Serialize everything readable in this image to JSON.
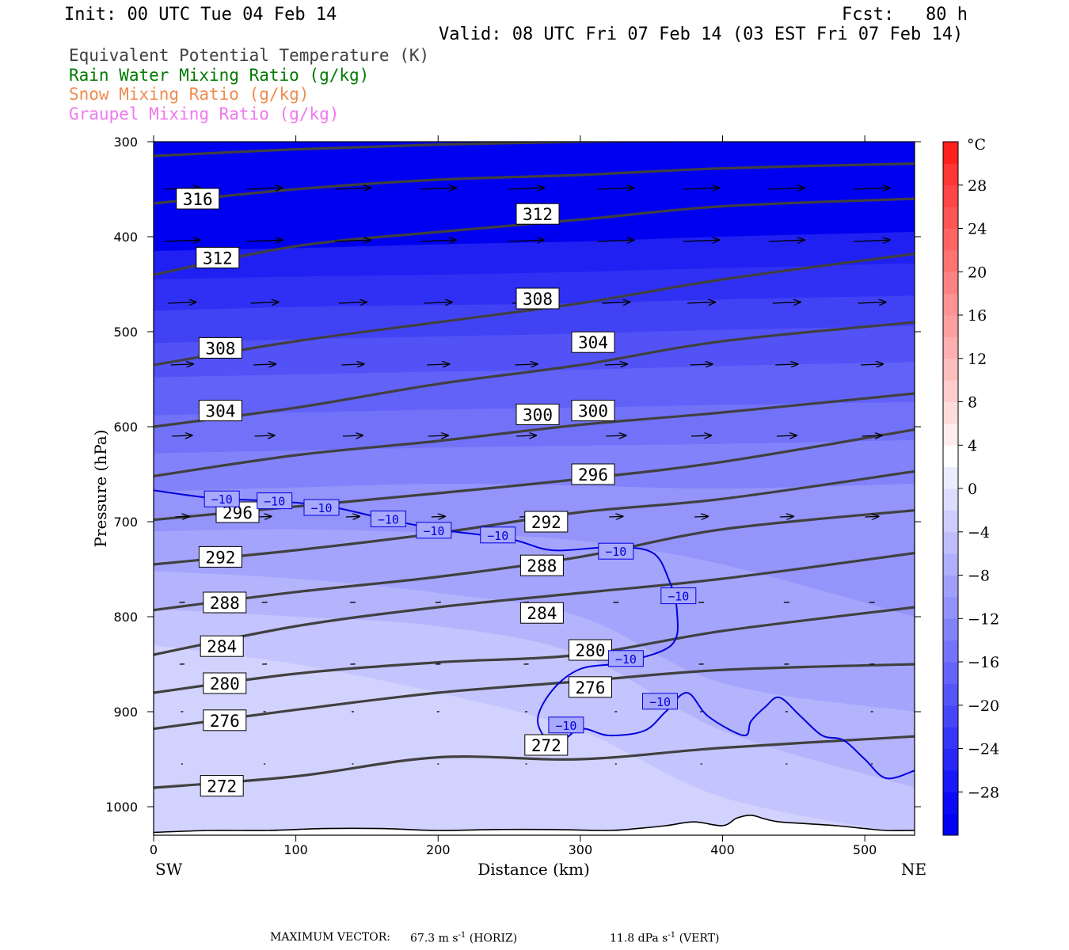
{
  "header": {
    "init": "Init: 00 UTC Tue 04 Feb 14",
    "fcst": "Fcst:   80 h",
    "valid": "Valid: 08 UTC Fri 07 Feb 14 (03 EST Fri 07 Feb 14)"
  },
  "legend": [
    {
      "label": "Equivalent Potential Temperature (K)",
      "color": "#404040"
    },
    {
      "label": "Rain Water Mixing Ratio (g/kg)",
      "color": "#007a00"
    },
    {
      "label": "Snow Mixing Ratio (g/kg)",
      "color": "#f08c50"
    },
    {
      "label": "Graupel Mixing Ratio (g/kg)",
      "color": "#f078f0"
    }
  ],
  "footer": {
    "max_vector_label": "MAXIMUM VECTOR:",
    "horiz_value": "67.3",
    "horiz_unit": "m s",
    "horiz_exp": "-1",
    "horiz_tag": "(HORIZ)",
    "vert_value": "11.8",
    "vert_unit": "dPa s",
    "vert_exp": "-1",
    "vert_tag": "(VERT)"
  },
  "chart_data": {
    "type": "contour",
    "xlabel": "Distance (km)",
    "ylabel": "Pressure (hPa)",
    "x_left_label": "SW",
    "x_right_label": "NE",
    "xlim": [
      0,
      535
    ],
    "ylim": [
      1030,
      300
    ],
    "x_ticks": [
      0,
      100,
      200,
      300,
      400,
      500
    ],
    "y_ticks": [
      300,
      400,
      500,
      600,
      700,
      800,
      900,
      1000
    ],
    "colorbar": {
      "unit": "°C",
      "tick_labels": [
        "28",
        "24",
        "20",
        "16",
        "12",
        "8",
        "4",
        "0",
        "−4",
        "−8",
        "−12",
        "−16",
        "−20",
        "−24",
        "−28"
      ],
      "levels": [
        -32,
        -30,
        -28,
        -26,
        -24,
        -22,
        -20,
        -18,
        -16,
        -14,
        -12,
        -10,
        -8,
        -6,
        -4,
        -2,
        0,
        2,
        4,
        6,
        8,
        10,
        12,
        14,
        16,
        18,
        20,
        22,
        24,
        26,
        28,
        30,
        32
      ],
      "colors": [
        "#0000f5",
        "#0a0af7",
        "#1818f8",
        "#2727f8",
        "#3636f9",
        "#4646f9",
        "#5555fa",
        "#6464fa",
        "#7373fb",
        "#8282fb",
        "#9292fc",
        "#a0a0fc",
        "#afaffd",
        "#bebefd",
        "#cdcdfe",
        "#dcdcfe",
        "#ececff",
        "#ffffff",
        "#ffecec",
        "#ffdcdc",
        "#ffcdcd",
        "#ffbebe",
        "#ffafaf",
        "#ffa0a0",
        "#ff9292",
        "#ff8282",
        "#ff7373",
        "#ff6464",
        "#ff5555",
        "#ff4646",
        "#ff3636",
        "#ff2020"
      ]
    },
    "temperature_fill": [
      {
        "level": -28,
        "color": "#0000f0",
        "boundary": [
          [
            0,
            380
          ],
          [
            100,
            378
          ],
          [
            200,
            375
          ],
          [
            300,
            370
          ],
          [
            400,
            368
          ],
          [
            535,
            365
          ]
        ]
      },
      {
        "level": -26,
        "color": "#2020f2",
        "boundary": [
          [
            0,
            415
          ],
          [
            100,
            412
          ],
          [
            200,
            408
          ],
          [
            300,
            405
          ],
          [
            400,
            400
          ],
          [
            535,
            395
          ]
        ]
      },
      {
        "level": -24,
        "color": "#3030f4",
        "boundary": [
          [
            0,
            445
          ],
          [
            100,
            442
          ],
          [
            200,
            440
          ],
          [
            300,
            437
          ],
          [
            400,
            433
          ],
          [
            535,
            428
          ]
        ]
      },
      {
        "level": -22,
        "color": "#4242f5",
        "boundary": [
          [
            0,
            478
          ],
          [
            100,
            474
          ],
          [
            200,
            472
          ],
          [
            300,
            470
          ],
          [
            400,
            466
          ],
          [
            535,
            462
          ]
        ]
      },
      {
        "level": -20,
        "color": "#5252f7",
        "boundary": [
          [
            0,
            512
          ],
          [
            100,
            508
          ],
          [
            200,
            505
          ],
          [
            300,
            502
          ],
          [
            400,
            498
          ],
          [
            535,
            494
          ]
        ]
      },
      {
        "level": -18,
        "color": "#6262f8",
        "boundary": [
          [
            0,
            548
          ],
          [
            100,
            545
          ],
          [
            200,
            542
          ],
          [
            300,
            540
          ],
          [
            400,
            536
          ],
          [
            535,
            532
          ]
        ]
      },
      {
        "level": -16,
        "color": "#7272f9",
        "boundary": [
          [
            0,
            588
          ],
          [
            100,
            585
          ],
          [
            200,
            582
          ],
          [
            300,
            580
          ],
          [
            400,
            577
          ],
          [
            535,
            574
          ]
        ]
      },
      {
        "level": -14,
        "color": "#8282fa",
        "boundary": [
          [
            0,
            628
          ],
          [
            100,
            625
          ],
          [
            200,
            622
          ],
          [
            300,
            620
          ],
          [
            400,
            618
          ],
          [
            535,
            614
          ]
        ]
      },
      {
        "level": -12,
        "color": "#9494fb",
        "boundary": [
          [
            0,
            668
          ],
          [
            100,
            664
          ],
          [
            200,
            660
          ],
          [
            300,
            662
          ],
          [
            400,
            665
          ],
          [
            535,
            660
          ]
        ]
      },
      {
        "level": -10,
        "color": "#a4a4fc",
        "boundary": [
          [
            0,
            710
          ],
          [
            100,
            708
          ],
          [
            200,
            712
          ],
          [
            300,
            720
          ],
          [
            400,
            745
          ],
          [
            535,
            800
          ]
        ]
      },
      {
        "level": -8,
        "color": "#b4b4fd",
        "boundary": [
          [
            0,
            752
          ],
          [
            100,
            760
          ],
          [
            200,
            775
          ],
          [
            300,
            800
          ],
          [
            400,
            870
          ],
          [
            535,
            900
          ]
        ]
      },
      {
        "level": -6,
        "color": "#c4c4fe",
        "boundary": [
          [
            0,
            792
          ],
          [
            100,
            800
          ],
          [
            200,
            810
          ],
          [
            300,
            840
          ],
          [
            400,
            920
          ],
          [
            535,
            980
          ]
        ]
      },
      {
        "level": -4,
        "color": "#d2d2fe",
        "boundary": [
          [
            0,
            830
          ],
          [
            100,
            850
          ],
          [
            200,
            880
          ],
          [
            300,
            920
          ],
          [
            400,
            990
          ],
          [
            535,
            1030
          ]
        ]
      }
    ],
    "theta_e_contours": [
      {
        "value": 316,
        "points": [
          [
            0,
            315
          ],
          [
            100,
            308
          ],
          [
            200,
            303
          ],
          [
            300,
            300
          ],
          [
            400,
            299
          ],
          [
            535,
            298
          ]
        ]
      },
      {
        "value": 312,
        "points": [
          [
            0,
            365
          ],
          [
            100,
            350
          ],
          [
            200,
            340
          ],
          [
            300,
            335
          ],
          [
            400,
            328
          ],
          [
            535,
            323
          ]
        ]
      },
      {
        "value": 312,
        "points": [
          [
            0,
            440
          ],
          [
            100,
            410
          ],
          [
            200,
            395
          ],
          [
            300,
            382
          ],
          [
            400,
            368
          ],
          [
            535,
            360
          ]
        ]
      },
      {
        "value": 308,
        "points": [
          [
            0,
            535
          ],
          [
            100,
            510
          ],
          [
            200,
            490
          ],
          [
            300,
            470
          ],
          [
            400,
            445
          ],
          [
            535,
            418
          ]
        ]
      },
      {
        "value": 304,
        "points": [
          [
            0,
            600
          ],
          [
            100,
            580
          ],
          [
            200,
            555
          ],
          [
            300,
            535
          ],
          [
            400,
            510
          ],
          [
            535,
            490
          ]
        ]
      },
      {
        "value": 300,
        "points": [
          [
            0,
            652
          ],
          [
            100,
            630
          ],
          [
            200,
            615
          ],
          [
            300,
            598
          ],
          [
            400,
            585
          ],
          [
            535,
            565
          ]
        ]
      },
      {
        "value": 296,
        "points": [
          [
            0,
            698
          ],
          [
            100,
            684
          ],
          [
            200,
            670
          ],
          [
            300,
            655
          ],
          [
            400,
            637
          ],
          [
            535,
            603
          ]
        ]
      },
      {
        "value": 292,
        "points": [
          [
            0,
            745
          ],
          [
            100,
            730
          ],
          [
            200,
            712
          ],
          [
            300,
            690
          ],
          [
            400,
            676
          ],
          [
            535,
            647
          ]
        ]
      },
      {
        "value": 288,
        "points": [
          [
            0,
            793
          ],
          [
            100,
            774
          ],
          [
            200,
            758
          ],
          [
            300,
            737
          ],
          [
            400,
            708
          ],
          [
            535,
            688
          ]
        ]
      },
      {
        "value": 284,
        "points": [
          [
            0,
            840
          ],
          [
            100,
            810
          ],
          [
            200,
            790
          ],
          [
            300,
            775
          ],
          [
            400,
            760
          ],
          [
            535,
            733
          ]
        ]
      },
      {
        "value": 280,
        "points": [
          [
            0,
            880
          ],
          [
            100,
            860
          ],
          [
            200,
            848
          ],
          [
            300,
            840
          ],
          [
            400,
            815
          ],
          [
            535,
            790
          ]
        ]
      },
      {
        "value": 276,
        "points": [
          [
            0,
            918
          ],
          [
            100,
            898
          ],
          [
            200,
            880
          ],
          [
            300,
            868
          ],
          [
            400,
            856
          ],
          [
            535,
            850
          ]
        ]
      },
      {
        "value": 272,
        "points": [
          [
            0,
            980
          ],
          [
            100,
            968
          ],
          [
            200,
            948
          ],
          [
            300,
            950
          ],
          [
            400,
            938
          ],
          [
            535,
            926
          ]
        ]
      }
    ],
    "theta_e_labels": [
      {
        "text": "316",
        "x": 31,
        "p": 360
      },
      {
        "text": "312",
        "x": 270,
        "p": 376
      },
      {
        "text": "312",
        "x": 45,
        "p": 422
      },
      {
        "text": "308",
        "x": 270,
        "p": 465
      },
      {
        "text": "308",
        "x": 47,
        "p": 517
      },
      {
        "text": "304",
        "x": 309,
        "p": 511
      },
      {
        "text": "304",
        "x": 47,
        "p": 583
      },
      {
        "text": "300",
        "x": 270,
        "p": 587
      },
      {
        "text": "300",
        "x": 309,
        "p": 583
      },
      {
        "text": "296",
        "x": 59,
        "p": 690
      },
      {
        "text": "296",
        "x": 309,
        "p": 650
      },
      {
        "text": "292",
        "x": 47,
        "p": 737
      },
      {
        "text": "292",
        "x": 276,
        "p": 700
      },
      {
        "text": "288",
        "x": 50,
        "p": 785
      },
      {
        "text": "288",
        "x": 273,
        "p": 746
      },
      {
        "text": "284",
        "x": 48,
        "p": 831
      },
      {
        "text": "284",
        "x": 273,
        "p": 796
      },
      {
        "text": "280",
        "x": 50,
        "p": 870
      },
      {
        "text": "280",
        "x": 307,
        "p": 835
      },
      {
        "text": "276",
        "x": 50,
        "p": 909
      },
      {
        "text": "276",
        "x": 307,
        "p": 874
      },
      {
        "text": "272",
        "x": 276,
        "p": 935
      },
      {
        "text": "272",
        "x": 48,
        "p": 978
      }
    ],
    "isotherm_minus10": {
      "value": -10,
      "label": "−10",
      "points": [
        [
          0,
          667
        ],
        [
          40,
          675
        ],
        [
          80,
          678
        ],
        [
          120,
          683
        ],
        [
          160,
          696
        ],
        [
          200,
          708
        ],
        [
          250,
          718
        ],
        [
          280,
          730
        ],
        [
          320,
          727
        ],
        [
          350,
          732
        ],
        [
          362,
          760
        ],
        [
          368,
          795
        ],
        [
          364,
          830
        ],
        [
          330,
          848
        ],
        [
          300,
          855
        ],
        [
          280,
          878
        ],
        [
          270,
          910
        ],
        [
          282,
          935
        ],
        [
          300,
          918
        ],
        [
          320,
          925
        ],
        [
          345,
          920
        ],
        [
          360,
          900
        ],
        [
          375,
          880
        ],
        [
          390,
          905
        ],
        [
          415,
          925
        ],
        [
          420,
          910
        ],
        [
          430,
          895
        ],
        [
          440,
          885
        ],
        [
          455,
          905
        ],
        [
          470,
          925
        ],
        [
          485,
          930
        ],
        [
          500,
          950
        ],
        [
          515,
          970
        ],
        [
          535,
          962
        ]
      ],
      "label_positions": [
        [
          48,
          676
        ],
        [
          85,
          678
        ],
        [
          118,
          685
        ],
        [
          165,
          697
        ],
        [
          197,
          709
        ],
        [
          242,
          714
        ],
        [
          325,
          731
        ],
        [
          369,
          778
        ],
        [
          332,
          844
        ],
        [
          356,
          889
        ],
        [
          290,
          914
        ]
      ]
    },
    "rain_water_mixing_ratio": [],
    "snow_mixing_ratio": [],
    "graupel_mixing_ratio": [],
    "wind_vectors": {
      "rows_hpa": [
        350,
        405,
        470,
        535,
        610,
        695,
        785,
        850,
        900,
        955
      ],
      "columns_km": [
        20,
        78,
        140,
        200,
        262,
        325,
        385,
        445,
        505
      ],
      "row_lengths": [
        45,
        45,
        35,
        28,
        25,
        17,
        7,
        6,
        3,
        2
      ]
    },
    "terrain": {
      "surface_hpa": [
        [
          0,
          1027
        ],
        [
          40,
          1025
        ],
        [
          80,
          1025
        ],
        [
          120,
          1023
        ],
        [
          160,
          1023
        ],
        [
          200,
          1025
        ],
        [
          240,
          1024
        ],
        [
          280,
          1024
        ],
        [
          320,
          1025
        ],
        [
          340,
          1023
        ],
        [
          360,
          1020
        ],
        [
          380,
          1016
        ],
        [
          400,
          1020
        ],
        [
          410,
          1012
        ],
        [
          420,
          1009
        ],
        [
          430,
          1013
        ],
        [
          440,
          1016
        ],
        [
          460,
          1018
        ],
        [
          480,
          1020
        ],
        [
          500,
          1023
        ],
        [
          515,
          1025
        ],
        [
          535,
          1025
        ]
      ]
    }
  }
}
